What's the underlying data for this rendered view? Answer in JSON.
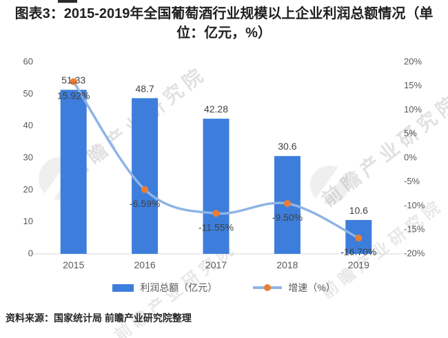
{
  "title": "图表3：2015-2019年全国葡萄酒行业规模以上企业利润总额情况（单位：亿元，%）",
  "source": "资料来源：国家统计局 前瞻产业研究院整理",
  "watermark": {
    "text": "前瞻产业研究院"
  },
  "legend": {
    "bar_label": "利润总额（亿元）",
    "line_label": "增速（%）"
  },
  "colors": {
    "bar": "#3D7EDC",
    "line": "#8FB4E4",
    "marker": "#ED7D31",
    "data_label": "#404040",
    "axis_text": "#595959",
    "axis_line": "#D9D9D9"
  },
  "chart_data": {
    "type": "bar+line",
    "title": "图表3：2015-2019年全国葡萄酒行业规模以上企业利润总额情况（单位：亿元，%）",
    "categories": [
      "2015",
      "2016",
      "2017",
      "2018",
      "2019"
    ],
    "series": [
      {
        "name": "利润总额（亿元）",
        "type": "bar",
        "axis": "left",
        "values": [
          51.33,
          48.7,
          42.28,
          30.6,
          10.6
        ],
        "labels": [
          "51.33",
          "48.7",
          "42.28",
          "30.6",
          "10.6"
        ]
      },
      {
        "name": "增速（%）",
        "type": "line",
        "axis": "right",
        "values": [
          15.92,
          -6.59,
          -11.55,
          -9.5,
          -16.7
        ],
        "labels": [
          "15.92%",
          "-6.59%",
          "-11.55%",
          "-9.50%",
          "-16.70%"
        ]
      }
    ],
    "left_axis": {
      "min": 0,
      "max": 60,
      "tick_values": [
        0,
        10,
        20,
        30,
        40,
        50,
        60
      ],
      "tick_labels": [
        "0",
        "10",
        "20",
        "30",
        "40",
        "50",
        "60"
      ]
    },
    "right_axis": {
      "min": -20,
      "max": 20,
      "tick_values": [
        20,
        15,
        10,
        5,
        0,
        -5,
        -10,
        -15,
        -20
      ],
      "tick_labels": [
        "20%",
        "15%",
        "10%",
        "5%",
        "0%",
        "-5%",
        "-10%",
        "-15%",
        "-20%"
      ]
    },
    "grid": false,
    "legend_position": "bottom"
  }
}
